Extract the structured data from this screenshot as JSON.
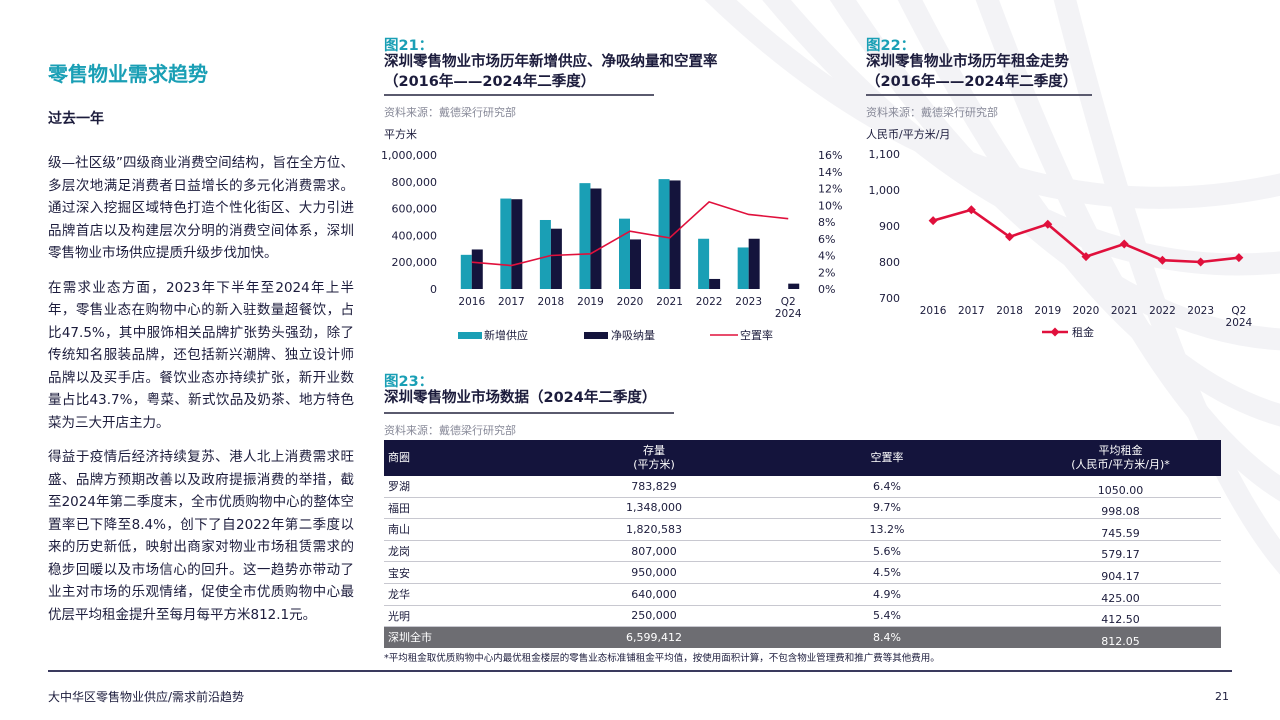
{
  "left": {
    "title": "零售物业需求趋势",
    "subtitle": "过去一年",
    "paragraphs": [
      "级—社区级”四级商业消费空间结构，旨在全方位、多层次地满足消费者日益增长的多元化消费需求。通过深入挖掘区域特色打造个性化街区、大力引进品牌首店以及构建层次分明的消费空间体系，深圳零售物业市场供应提质升级步伐加快。",
      "在需求业态方面，2023年下半年至2024年上半年，零售业态在购物中心的新入驻数量超餐饮，占比47.5%，其中服饰相关品牌扩张势头强劲，除了传统知名服装品牌，还包括新兴潮牌、独立设计师品牌以及买手店。餐饮业态亦持续扩张，新开业数量占比43.7%，粤菜、新式饮品及奶茶、地方特色菜为三大开店主力。",
      "得益于疫情后经济持续复苏、港人北上消费需求旺盛、品牌方预期改善以及政府提振消费的举措，截至2024年第二季度末，全市优质购物中心的整体空置率已下降至8.4%，创下了自2022年第二季度以来的历史新低，映射出商家对物业市场租赁需求的稳步回暖以及市场信心的回升。这一趋势亦带动了业主对市场的乐观情绪，促使全市优质购物中心最优层平均租金提升至每月每平方米812.1元。"
    ]
  },
  "fig21": {
    "label": "图21：",
    "title_line1": "深圳零售物业市场历年新增供应、净吸纳量和空置率",
    "title_line2": "（2016年——2024年二季度）",
    "source": "资料来源：戴德梁行研究部",
    "unit": "平方米"
  },
  "fig22": {
    "label": "图22：",
    "title_line1": "深圳零售物业市场历年租金走势",
    "title_line2": "（2016年——2024年二季度）",
    "source": "资料来源：戴德梁行研究部",
    "unit": "人民币/平方米/月"
  },
  "fig23": {
    "label": "图23：",
    "title": "深圳零售物业市场数据（2024年二季度）",
    "source": "资料来源：戴德梁行研究部",
    "headers": {
      "district": "商圈",
      "stock_line1": "存量",
      "stock_line2": "(平方米)",
      "vacancy": "空置率",
      "rent_line1": "平均租金",
      "rent_line2": "(人民币/平方米/月)*"
    },
    "rows": [
      {
        "district": "罗湖",
        "stock": "783,829",
        "vacancy": "6.4%",
        "rent": "1050.00"
      },
      {
        "district": "福田",
        "stock": "1,348,000",
        "vacancy": "9.7%",
        "rent": "998.08"
      },
      {
        "district": "南山",
        "stock": "1,820,583",
        "vacancy": "13.2%",
        "rent": "745.59"
      },
      {
        "district": "龙岗",
        "stock": "807,000",
        "vacancy": "5.6%",
        "rent": "579.17"
      },
      {
        "district": "宝安",
        "stock": "950,000",
        "vacancy": "4.5%",
        "rent": "904.17"
      },
      {
        "district": "龙华",
        "stock": "640,000",
        "vacancy": "4.9%",
        "rent": "425.00"
      },
      {
        "district": "光明",
        "stock": "250,000",
        "vacancy": "5.4%",
        "rent": "412.50"
      }
    ],
    "total": {
      "district": "深圳全市",
      "stock": "6,599,412",
      "vacancy": "8.4%",
      "rent": "812.05"
    },
    "footnote": "*平均租金取优质购物中心内最优租金楼层的零售业态标准铺租金平均值，按使用面积计算，不包含物业管理费和推广费等其他费用。"
  },
  "footer": {
    "text": "大中华区零售物业供应/需求前沿趋势",
    "page": "21"
  },
  "colors": {
    "teal": "#1a9fb5",
    "navy": "#14143c",
    "red": "#e0103c",
    "gray_total_row": "#6d6d72"
  },
  "chart_data": [
    {
      "type": "bar",
      "id": "fig21",
      "categories": [
        "2016",
        "2017",
        "2018",
        "2019",
        "2020",
        "2021",
        "2022",
        "2023",
        "Q2 2024"
      ],
      "category_lines": [
        [
          "2016"
        ],
        [
          "2017"
        ],
        [
          "2018"
        ],
        [
          "2019"
        ],
        [
          "2020"
        ],
        [
          "2021"
        ],
        [
          "2022"
        ],
        [
          "2023"
        ],
        [
          "Q2",
          "2024"
        ]
      ],
      "series": [
        {
          "name": "新增供应",
          "kind": "bar",
          "axis": "left",
          "color": "#1a9fb5",
          "values": [
            255000,
            675000,
            515000,
            790000,
            525000,
            820000,
            375000,
            310000,
            0
          ]
        },
        {
          "name": "净吸纳量",
          "kind": "bar",
          "axis": "left",
          "color": "#14143c",
          "values": [
            295000,
            670000,
            450000,
            750000,
            370000,
            810000,
            75000,
            375000,
            40000
          ]
        },
        {
          "name": "空置率",
          "kind": "line",
          "axis": "right",
          "color": "#e0103c",
          "values": [
            3.2,
            2.8,
            4.0,
            4.2,
            6.9,
            6.1,
            10.4,
            8.9,
            8.4
          ]
        }
      ],
      "y_left": {
        "ylim": [
          0,
          1000000
        ],
        "ticks": [
          0,
          200000,
          400000,
          600000,
          800000,
          1000000
        ],
        "tick_labels": [
          "0",
          "200,000",
          "400,000",
          "600,000",
          "800,000",
          "1,000,000"
        ]
      },
      "y_right": {
        "ylim": [
          0,
          16
        ],
        "ticks": [
          0,
          2,
          4,
          6,
          8,
          10,
          12,
          14,
          16
        ],
        "tick_labels": [
          "0%",
          "2%",
          "4%",
          "6%",
          "8%",
          "10%",
          "12%",
          "14%",
          "16%"
        ]
      },
      "ylabel": "平方米",
      "grid": false,
      "legend_position": "bottom"
    },
    {
      "type": "line",
      "id": "fig22",
      "categories": [
        "2016",
        "2017",
        "2018",
        "2019",
        "2020",
        "2021",
        "2022",
        "2023",
        "Q2 2024"
      ],
      "category_lines": [
        [
          "2016"
        ],
        [
          "2017"
        ],
        [
          "2018"
        ],
        [
          "2019"
        ],
        [
          "2020"
        ],
        [
          "2021"
        ],
        [
          "2022"
        ],
        [
          "2023"
        ],
        [
          "Q2",
          "2024"
        ]
      ],
      "series": [
        {
          "name": "租金",
          "color": "#e0103c",
          "values": [
            915,
            945,
            870,
            905,
            815,
            850,
            805,
            800,
            812
          ]
        }
      ],
      "ylim": [
        700,
        1100
      ],
      "ticks": [
        700,
        800,
        900,
        1000,
        1100
      ],
      "tick_labels": [
        "700",
        "800",
        "900",
        "1,000",
        "1,100"
      ],
      "ylabel": "人民币/平方米/月",
      "grid": false,
      "legend_position": "bottom"
    }
  ]
}
